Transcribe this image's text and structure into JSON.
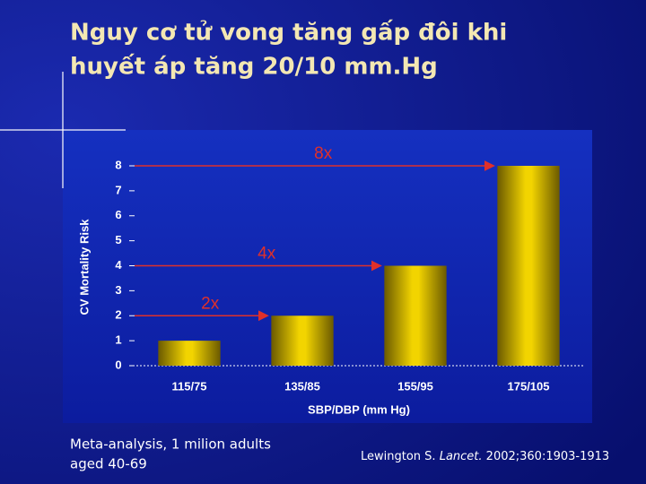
{
  "slide": {
    "title_lines": [
      "Nguy cơ tử vong tăng gấp đôi khi",
      "huyết áp tăng 20/10 mm.Hg"
    ],
    "note_lines": [
      "Meta-analysis, 1 milion adults",
      "aged 40-69"
    ],
    "citation": {
      "author": "Lewington S.",
      "journal": "Lancet.",
      "details": "2002;360:1903-1913"
    }
  },
  "chart_data": {
    "type": "bar",
    "x_label": "SBP/DBP (mm Hg)",
    "y_label": "CV Mortality Risk",
    "categories": [
      "115/75",
      "135/85",
      "155/95",
      "175/105"
    ],
    "values": [
      1,
      2,
      4,
      8
    ],
    "color": "#f2d400",
    "ylim": [
      0,
      8
    ],
    "yticks": [
      0,
      1,
      2,
      3,
      4,
      5,
      6,
      7,
      8
    ],
    "annotations": [
      {
        "text": "2x",
        "category": 1
      },
      {
        "text": "4x",
        "category": 2
      },
      {
        "text": "8x",
        "category": 3
      }
    ]
  }
}
